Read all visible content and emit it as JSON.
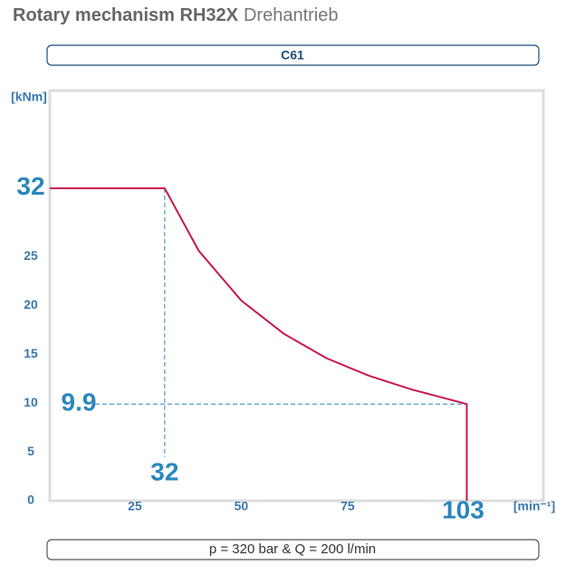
{
  "chart_data": {
    "type": "line",
    "title": "Rotary mechanism RH32X",
    "subtitle": "Drehantrieb",
    "header": "C61",
    "footer": "p = 320 bar & Q = 200 l/min",
    "y_label": "[kNm]",
    "x_label": "[min⁻¹]",
    "series": [
      {
        "color": "#c8174a",
        "x": [
          5,
          32,
          40,
          50,
          60,
          70,
          80,
          90,
          103,
          103
        ],
        "values": [
          32,
          32,
          25.6,
          20.5,
          17.1,
          14.6,
          12.8,
          11.4,
          9.9,
          0
        ]
      }
    ],
    "xlim": [
      5,
      121
    ],
    "ylim": [
      0,
      42
    ],
    "xticks": [
      25,
      50,
      75
    ],
    "yticks": [
      0,
      5,
      10,
      15,
      20,
      25
    ],
    "x_markers": [
      32,
      103
    ],
    "y_markers": [
      32,
      9.9
    ],
    "marker_color": "#2a86bd"
  }
}
